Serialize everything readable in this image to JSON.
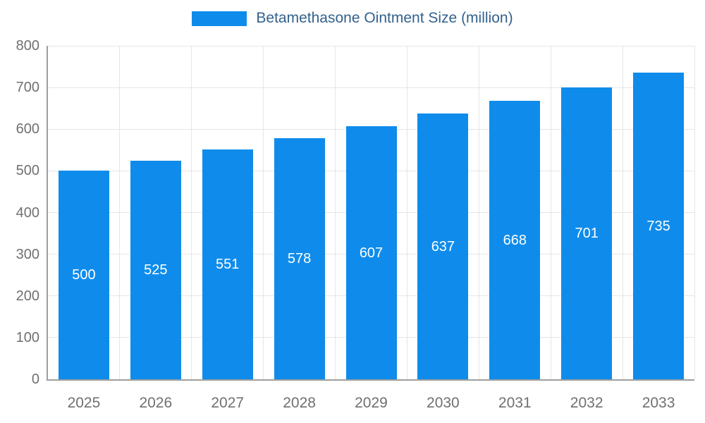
{
  "chart_data": {
    "type": "bar",
    "title": "Betamethasone Ointment Size (million)",
    "categories": [
      "2025",
      "2026",
      "2027",
      "2028",
      "2029",
      "2030",
      "2031",
      "2032",
      "2033"
    ],
    "values": [
      500,
      525,
      551,
      578,
      607,
      637,
      668,
      701,
      735
    ],
    "xlabel": "",
    "ylabel": "",
    "ylim": [
      0,
      800
    ],
    "ytick_step": 100,
    "ytick_labels": [
      "0",
      "100",
      "200",
      "300",
      "400",
      "500",
      "600",
      "700",
      "800"
    ],
    "grid": true,
    "legend_position": "top-center",
    "value_labels_position": "inside-middle",
    "bar_color": "#0f8ceb",
    "value_label_color": "#ffffff",
    "tick_label_color": "#707070",
    "legend_text_color": "#33618c",
    "grid_color": "#e6e6e6",
    "axis_color": "#9e9e9e",
    "background_color": "#ffffff"
  }
}
